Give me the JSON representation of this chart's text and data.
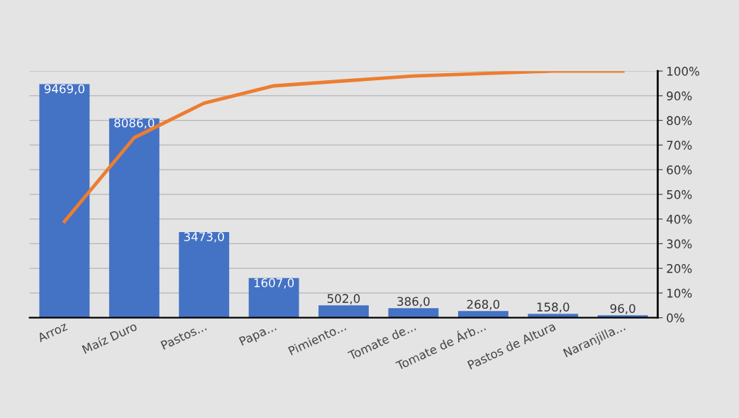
{
  "chart_data": {
    "type": "bar",
    "categories": [
      "Arroz",
      "Maíz Duro",
      "Pastos...",
      "Papa...",
      "Pimiento...",
      "Tomate de...",
      "Tomate de Árb...",
      "Pastos de Altura",
      "Naranjilla..."
    ],
    "series": [
      {
        "axis": "y2",
        "color": "#4472c4",
        "values": [
          9469,
          8086,
          3473,
          1607,
          502,
          386,
          268,
          158,
          96
        ],
        "value_labels": [
          "9469,0",
          "8086,0",
          "3473,0",
          "1607,0",
          "502,0",
          "386,0",
          "268,0",
          "158,0",
          "96,0"
        ]
      },
      {
        "type": "line",
        "color": "#ed7d31",
        "values": [
          39,
          73,
          87,
          94,
          96,
          98,
          99,
          100,
          100
        ]
      }
    ],
    "ylim": [
      0,
      100
    ],
    "y2lim": [
      0,
      10000
    ],
    "yticks": [
      {
        "value": 0,
        "label": "0%"
      },
      {
        "value": 10,
        "label": "10%"
      },
      {
        "value": 20,
        "label": "20%"
      },
      {
        "value": 30,
        "label": "30%"
      },
      {
        "value": 40,
        "label": "40%"
      },
      {
        "value": 50,
        "label": "50%"
      },
      {
        "value": 60,
        "label": "60%"
      },
      {
        "value": 70,
        "label": "70%"
      },
      {
        "value": 80,
        "label": "80%"
      },
      {
        "value": 90,
        "label": "90%"
      },
      {
        "value": 100,
        "label": "100%"
      }
    ],
    "tick_labels": "xy",
    "grid": "y",
    "marker": "none",
    "line_style": "solid",
    "legend": false
  }
}
